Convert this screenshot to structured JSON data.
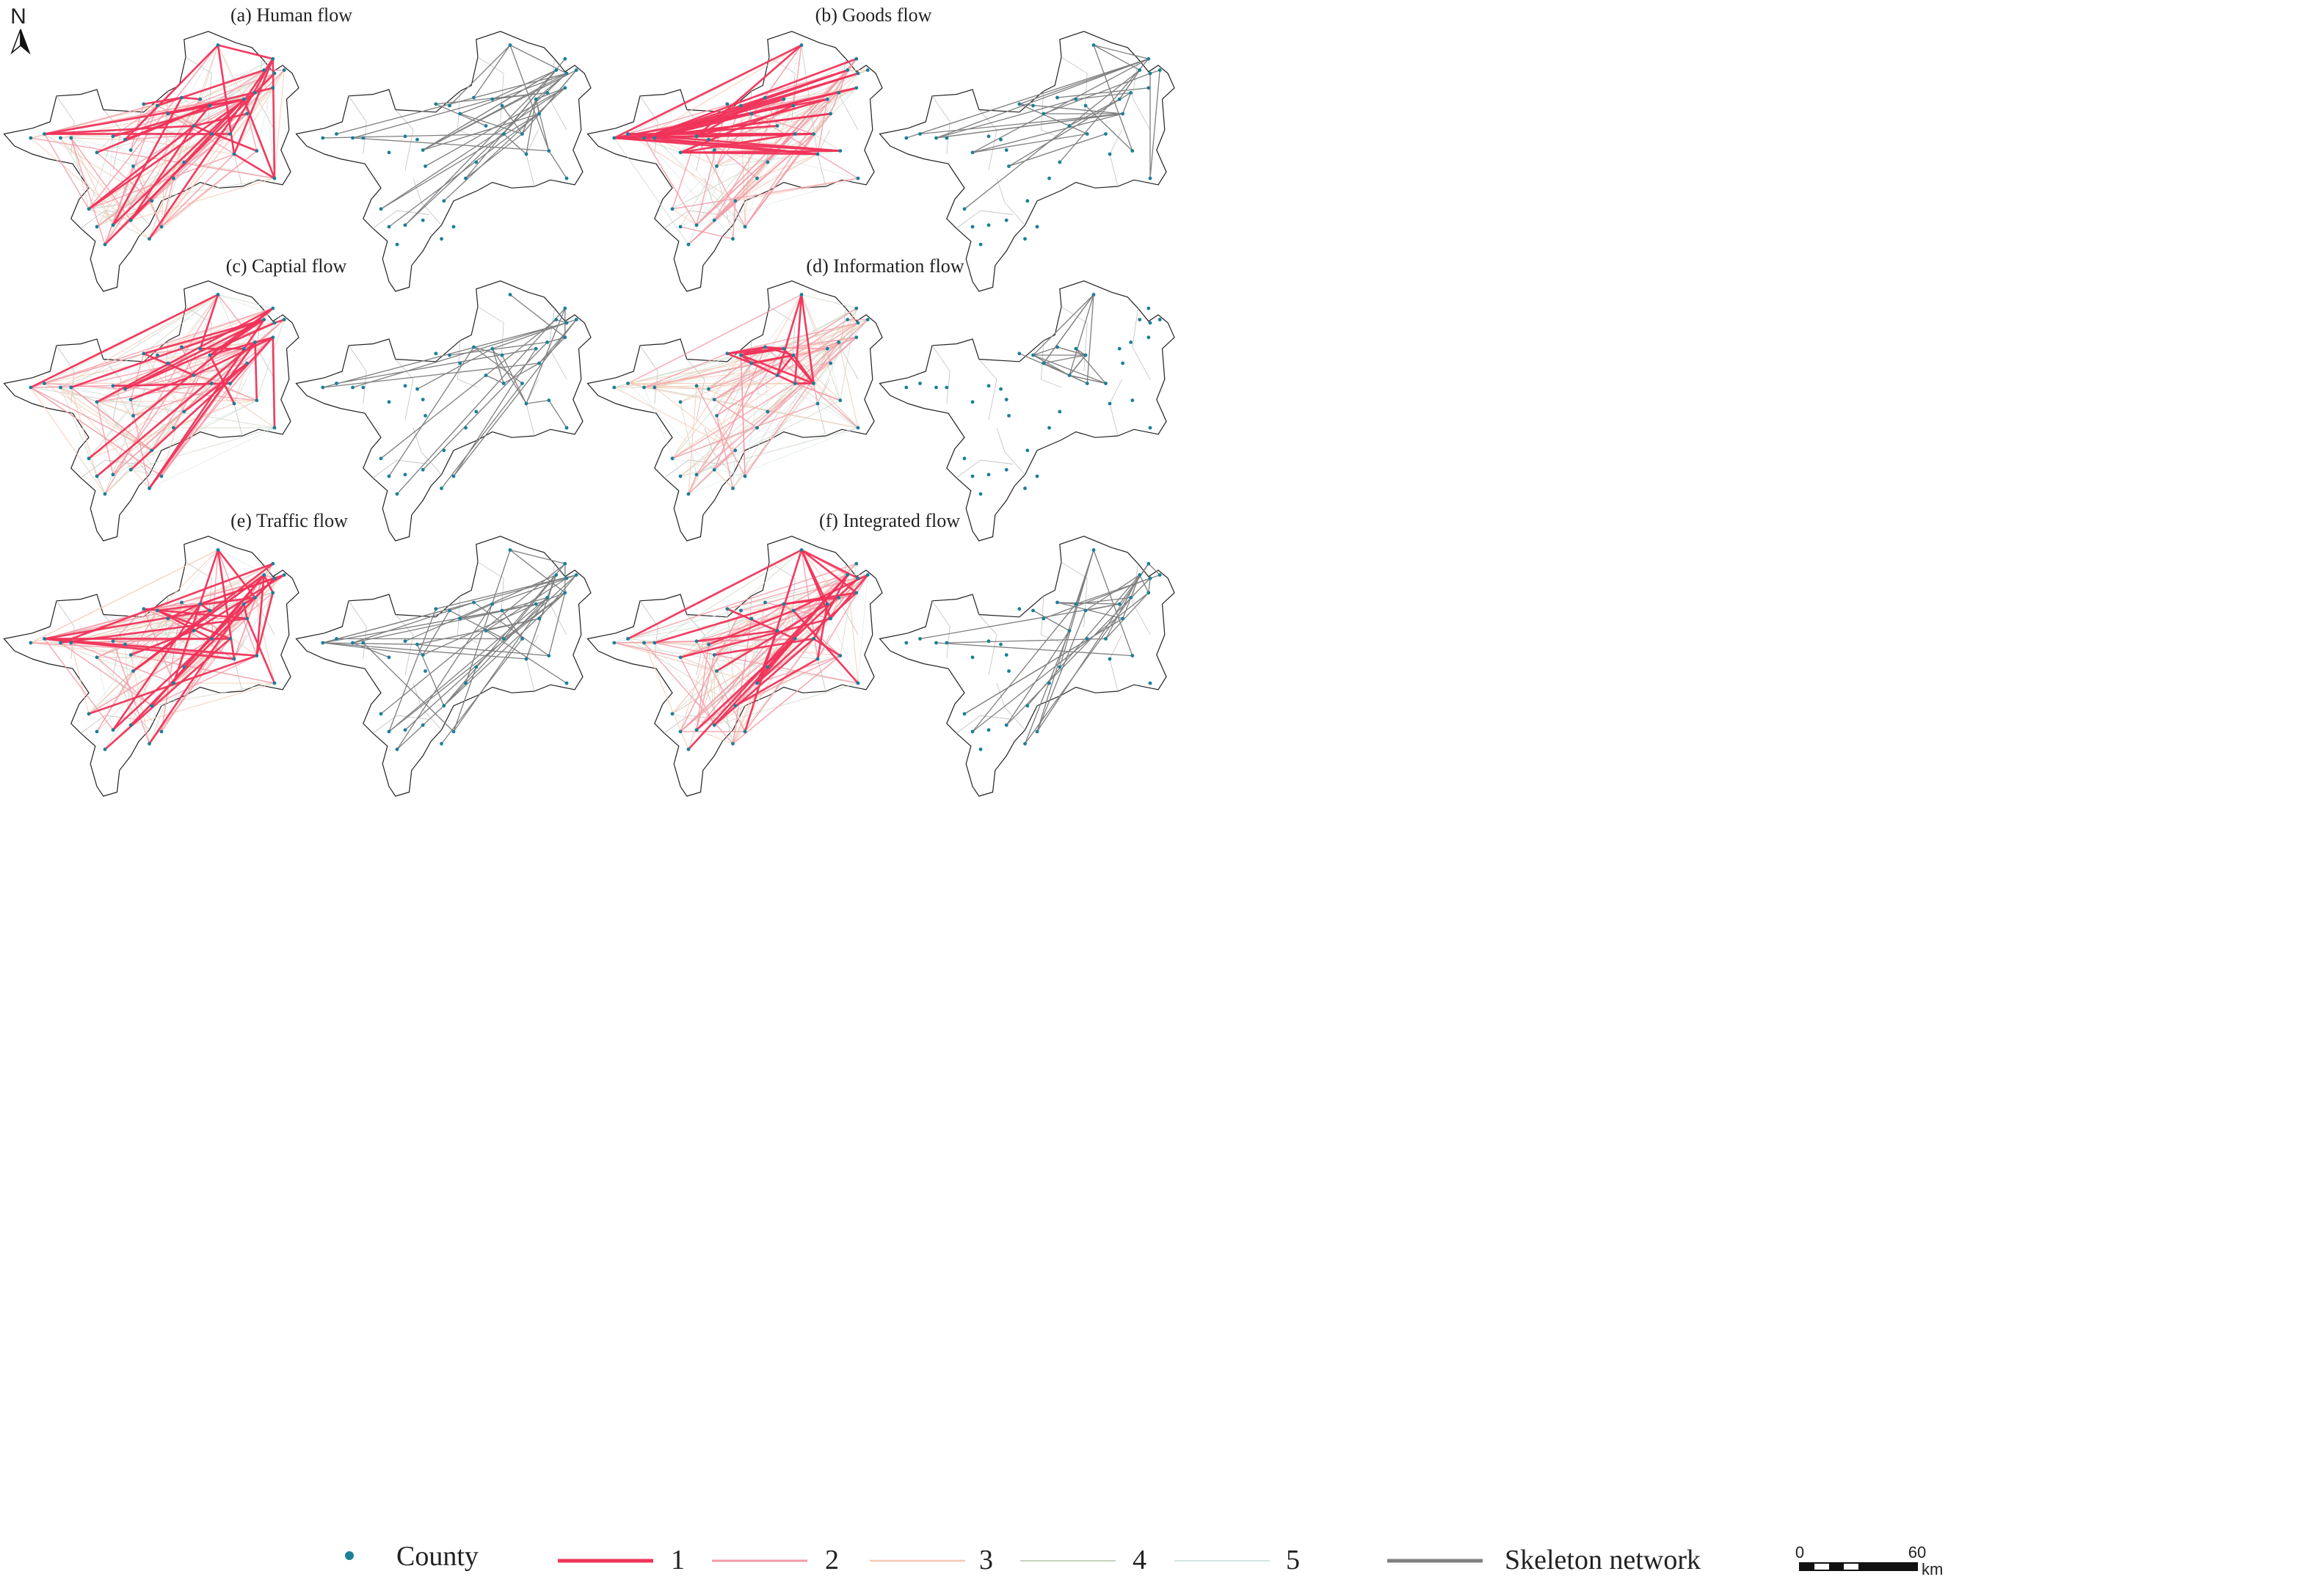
{
  "panels": [
    {
      "key": "a",
      "title": "(a) Human flow",
      "pattern": "dense",
      "n1": 30,
      "n2": 40,
      "n3": 40,
      "n4": 35,
      "n5": 30,
      "nskel": 45
    },
    {
      "key": "b",
      "title": "(b) Goods flow",
      "pattern": "west",
      "n1": 32,
      "n2": 45,
      "n3": 45,
      "n4": 35,
      "n5": 30,
      "nskel": 34
    },
    {
      "key": "c",
      "title": "(c) Captial flow",
      "pattern": "mid",
      "n1": 26,
      "n2": 40,
      "n3": 42,
      "n4": 38,
      "n5": 30,
      "nskel": 30
    },
    {
      "key": "d",
      "title": "(d) Information flow",
      "pattern": "cluster",
      "n1": 24,
      "n2": 40,
      "n3": 45,
      "n4": 40,
      "n5": 30,
      "nskel": 28
    },
    {
      "key": "e",
      "title": "(e) Traffic flow",
      "pattern": "grid",
      "n1": 42,
      "n2": 45,
      "n3": 45,
      "n4": 35,
      "n5": 30,
      "nskel": 52
    },
    {
      "key": "f",
      "title": "(f) Integrated flow",
      "pattern": "mid",
      "n1": 30,
      "n2": 42,
      "n3": 42,
      "n4": 38,
      "n5": 30,
      "nskel": 36
    }
  ],
  "colors": {
    "level1": "#f0335a",
    "level2": "#f29aa6",
    "level3": "#f5c8b2",
    "level4": "#c8d3bf",
    "level5": "#d6e4e4",
    "skeleton": "#808080",
    "county": "#1b7f9a",
    "boundary": "#222222",
    "inner_boundary": "#b4b4b4"
  },
  "legend": {
    "county_label": "County",
    "levels": [
      "1",
      "2",
      "3",
      "4",
      "5"
    ],
    "skeleton_label": "Skeleton network"
  },
  "scale": {
    "zero": "0",
    "max": "60",
    "unit": "km"
  },
  "north": "N"
}
